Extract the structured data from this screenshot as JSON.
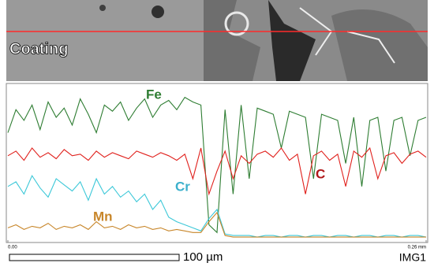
{
  "chart_data": {
    "type": "line",
    "annotations": [
      "Coating",
      "100 µm",
      "IMG1"
    ],
    "x": [
      0,
      0.005,
      0.01,
      0.015,
      0.02,
      0.025,
      0.03,
      0.035,
      0.04,
      0.045,
      0.05,
      0.055,
      0.06,
      0.065,
      0.07,
      0.075,
      0.08,
      0.085,
      0.09,
      0.095,
      0.1,
      0.105,
      0.11,
      0.115,
      0.12,
      0.125,
      0.13,
      0.135,
      0.14,
      0.145,
      0.15,
      0.155,
      0.16,
      0.165,
      0.17,
      0.175,
      0.18,
      0.185,
      0.19,
      0.195,
      0.2,
      0.205,
      0.21,
      0.215,
      0.22,
      0.225,
      0.23,
      0.235,
      0.24,
      0.245,
      0.25,
      0.255,
      0.26
    ],
    "xlim": [
      0,
      0.26
    ],
    "xticks": [
      {
        "value": 0,
        "label": "0.00"
      },
      {
        "value": 0.26,
        "label": "0.26 mm"
      }
    ],
    "ylim": [
      0,
      100
    ],
    "series": [
      {
        "name": "Fe",
        "color": "#2e7d32",
        "values": [
          70,
          85,
          78,
          88,
          72,
          90,
          80,
          86,
          75,
          92,
          82,
          70,
          88,
          84,
          90,
          78,
          86,
          92,
          80,
          88,
          91,
          85,
          93,
          90,
          88,
          10,
          5,
          85,
          30,
          88,
          40,
          86,
          84,
          82,
          60,
          84,
          82,
          80,
          40,
          82,
          80,
          78,
          50,
          80,
          35,
          78,
          80,
          45,
          78,
          80,
          55,
          78,
          80
        ]
      },
      {
        "name": "C",
        "color": "#e0201c",
        "values": [
          55,
          58,
          52,
          60,
          54,
          57,
          53,
          59,
          55,
          56,
          52,
          58,
          54,
          57,
          55,
          53,
          58,
          56,
          54,
          57,
          55,
          52,
          56,
          40,
          60,
          30,
          45,
          58,
          40,
          55,
          50,
          56,
          58,
          54,
          60,
          52,
          56,
          30,
          55,
          58,
          52,
          56,
          35,
          58,
          54,
          60,
          40,
          55,
          57,
          50,
          56,
          58,
          54
        ]
      },
      {
        "name": "Cr",
        "color": "#3cc8d8",
        "values": [
          35,
          38,
          30,
          42,
          34,
          28,
          40,
          36,
          32,
          38,
          26,
          40,
          30,
          35,
          28,
          32,
          25,
          30,
          20,
          26,
          15,
          12,
          10,
          8,
          6,
          14,
          20,
          4,
          3,
          3,
          3,
          2,
          3,
          3,
          2,
          3,
          3,
          2,
          3,
          3,
          2,
          3,
          3,
          2,
          3,
          3,
          2,
          3,
          3,
          2,
          3,
          3,
          2
        ]
      },
      {
        "name": "Mn",
        "color": "#c8862a",
        "values": [
          8,
          10,
          7,
          9,
          8,
          11,
          7,
          9,
          8,
          10,
          7,
          12,
          8,
          9,
          7,
          10,
          8,
          9,
          7,
          8,
          6,
          7,
          6,
          5,
          5,
          12,
          18,
          3,
          2,
          2,
          2,
          2,
          2,
          2,
          2,
          2,
          2,
          2,
          2,
          2,
          2,
          2,
          2,
          2,
          2,
          2,
          2,
          2,
          2,
          2,
          2,
          2,
          2
        ]
      }
    ]
  }
}
